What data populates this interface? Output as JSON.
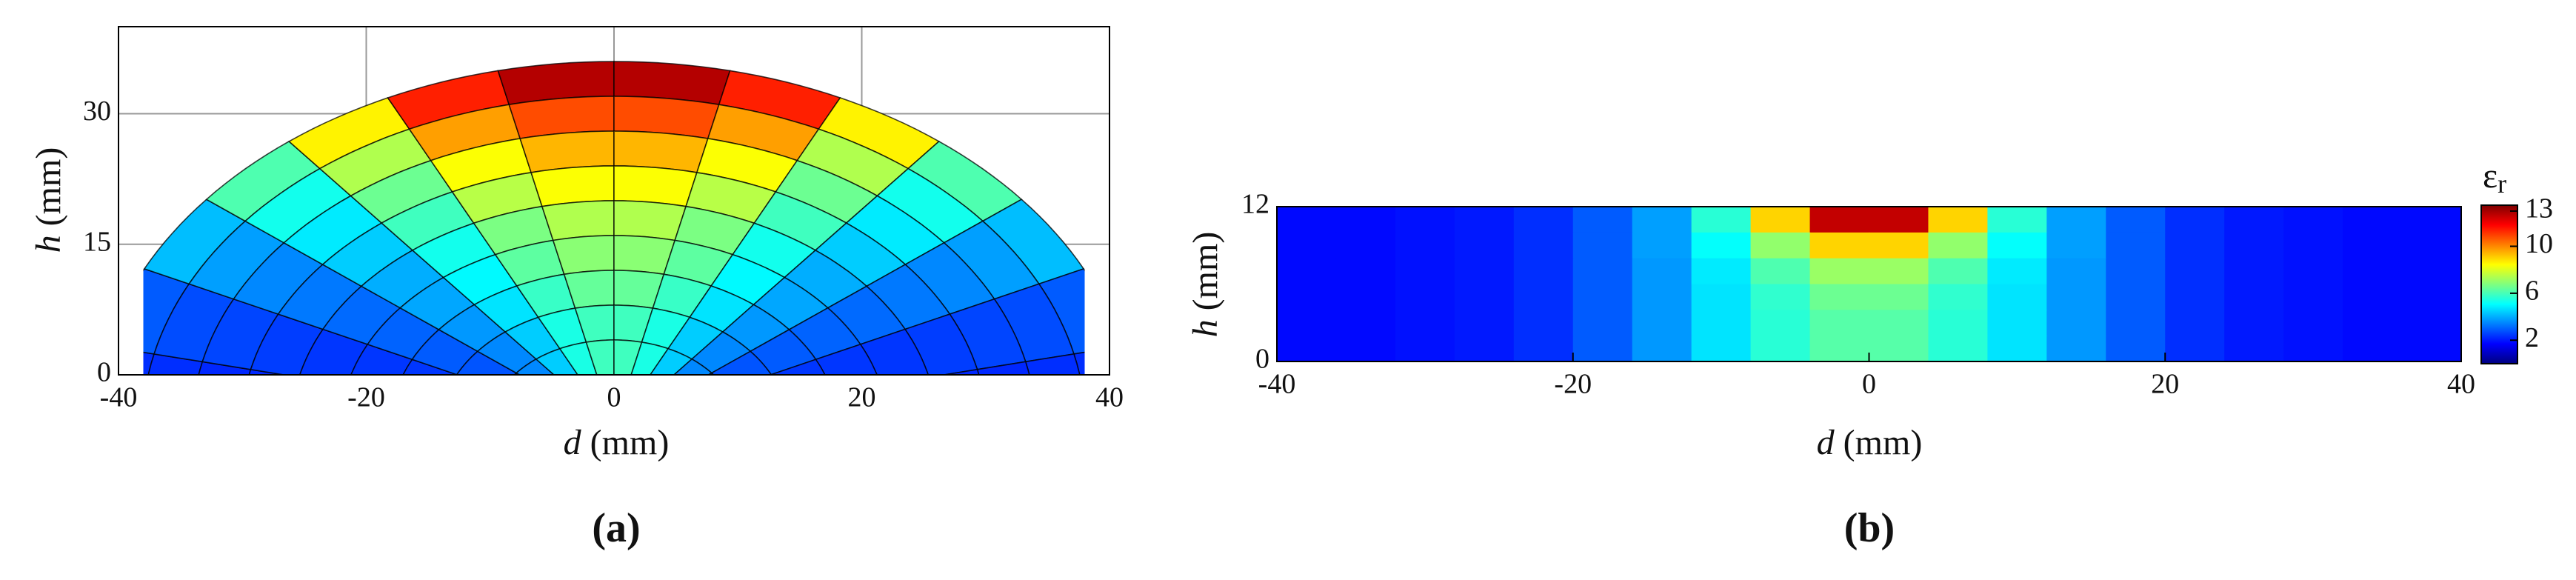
{
  "chart_data": [
    {
      "type": "mesh",
      "xlabel": "d",
      "xunit": "(mm)",
      "ylabel": "h",
      "yunit": "(mm)",
      "caption": "(a)",
      "xlim": [
        -40,
        40
      ],
      "ylim": [
        0,
        40
      ],
      "xticks": [
        -40,
        -20,
        0,
        20,
        40
      ],
      "yticks": [
        0,
        15,
        30
      ],
      "grid": true,
      "clim": [
        0,
        13.5
      ],
      "colormap": [
        "#00007f",
        "#0000ff",
        "#007fff",
        "#00ffff",
        "#7fff7f",
        "#ffff00",
        "#ff7f00",
        "#ff0000",
        "#7f0000"
      ],
      "values": [
        [
          2.3,
          2.9,
          4.2,
          6.1,
          8.6,
          11.4,
          12.8,
          12.8,
          11.4,
          8.6,
          6.1,
          4.2,
          2.9,
          2.3
        ],
        [
          2.3,
          2.7,
          3.8,
          5.3,
          7.4,
          9.7,
          10.8,
          10.8,
          9.7,
          7.4,
          5.3,
          3.8,
          2.7,
          2.3
        ],
        [
          2.2,
          2.6,
          3.5,
          4.8,
          6.5,
          8.4,
          9.4,
          9.4,
          8.4,
          6.5,
          4.8,
          3.5,
          2.6,
          2.2
        ],
        [
          2.2,
          2.5,
          3.3,
          4.4,
          5.9,
          7.5,
          8.4,
          8.4,
          7.5,
          5.9,
          4.4,
          3.3,
          2.5,
          2.2
        ],
        [
          2.2,
          2.4,
          3.1,
          4.0,
          5.3,
          6.7,
          7.4,
          7.4,
          6.7,
          5.3,
          4.0,
          3.1,
          2.4,
          2.2
        ],
        [
          2.2,
          2.4,
          3.0,
          3.9,
          5.0,
          6.3,
          6.9,
          6.9,
          6.3,
          5.0,
          3.9,
          3.0,
          2.4,
          2.2
        ],
        [
          2.1,
          2.4,
          2.9,
          3.7,
          4.7,
          5.8,
          6.4,
          6.4,
          5.8,
          4.7,
          3.7,
          2.9,
          2.4,
          2.1
        ],
        [
          2.1,
          2.3,
          2.8,
          3.5,
          4.4,
          5.4,
          5.9,
          5.9,
          5.4,
          4.4,
          3.5,
          2.8,
          2.3,
          2.1
        ],
        [
          2.1,
          2.3,
          2.8,
          3.5,
          4.4,
          5.4,
          5.9,
          5.9,
          5.4,
          4.4,
          3.5,
          2.8,
          2.3,
          2.1
        ]
      ]
    },
    {
      "type": "heatmap",
      "xlabel": "d",
      "xunit": "(mm)",
      "ylabel": "h",
      "yunit": "(mm)",
      "caption": "(b)",
      "xlim": [
        -40,
        40
      ],
      "ylim": [
        0,
        12
      ],
      "xticks": [
        -40,
        -20,
        0,
        20,
        40
      ],
      "yticks": [
        0,
        12
      ],
      "clim": [
        0,
        13.5
      ],
      "cticks": [
        2,
        6,
        10,
        13
      ],
      "colorbar_symbol": "ε",
      "colorbar_subscript": "r",
      "colormap": [
        "#00007f",
        "#0000ff",
        "#007fff",
        "#00ffff",
        "#7fff7f",
        "#ffff00",
        "#ff7f00",
        "#ff0000",
        "#7f0000"
      ],
      "values": [
        [
          1.8,
          1.8,
          1.9,
          2.0,
          2.3,
          2.9,
          3.8,
          5.6,
          9.0,
          12.6,
          12.6,
          9.0,
          5.6,
          3.8,
          2.9,
          2.3,
          2.0,
          1.9,
          1.8,
          1.8
        ],
        [
          1.8,
          1.8,
          1.9,
          2.0,
          2.3,
          2.9,
          3.8,
          5.1,
          7.0,
          9.0,
          9.0,
          7.0,
          5.1,
          3.8,
          2.9,
          2.3,
          2.0,
          1.9,
          1.8,
          1.8
        ],
        [
          1.8,
          1.8,
          1.9,
          2.0,
          2.3,
          2.9,
          3.7,
          4.8,
          6.1,
          7.1,
          7.1,
          6.1,
          4.8,
          3.7,
          2.9,
          2.3,
          2.0,
          1.9,
          1.8,
          1.8
        ],
        [
          1.8,
          1.8,
          1.9,
          2.0,
          2.3,
          2.9,
          3.7,
          4.7,
          5.7,
          6.5,
          6.5,
          5.7,
          4.7,
          3.7,
          2.9,
          2.3,
          2.0,
          1.9,
          1.8,
          1.8
        ],
        [
          1.8,
          1.8,
          1.9,
          2.0,
          2.3,
          2.9,
          3.7,
          4.7,
          5.6,
          6.2,
          6.2,
          5.6,
          4.7,
          3.7,
          2.9,
          2.3,
          2.0,
          1.9,
          1.8,
          1.8
        ],
        [
          1.8,
          1.8,
          1.9,
          2.0,
          2.3,
          2.9,
          3.7,
          4.7,
          5.6,
          6.2,
          6.2,
          5.6,
          4.7,
          3.7,
          2.9,
          2.3,
          2.0,
          1.9,
          1.8,
          1.8
        ]
      ]
    }
  ]
}
